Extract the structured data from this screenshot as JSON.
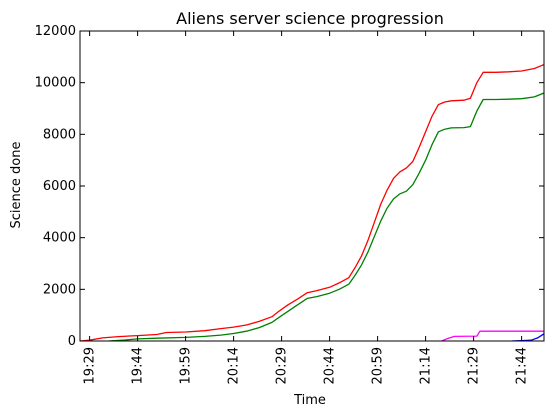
{
  "chart_data": {
    "type": "line",
    "title": "Aliens server science progression",
    "xlabel": "Time",
    "ylabel": "Science done",
    "xlim": [
      "19:26",
      "21:51"
    ],
    "ylim": [
      0,
      12000
    ],
    "yticks": [
      0,
      2000,
      4000,
      6000,
      8000,
      10000,
      12000
    ],
    "xticks": [
      "19:29",
      "19:44",
      "19:59",
      "20:14",
      "20:29",
      "20:44",
      "20:59",
      "21:14",
      "21:29",
      "21:44"
    ],
    "grid": false,
    "legend": "none",
    "series": [
      {
        "color": "#ff0000",
        "points": [
          [
            "19:26",
            0
          ],
          [
            "19:29",
            30
          ],
          [
            "19:33",
            120
          ],
          [
            "19:38",
            170
          ],
          [
            "19:44",
            210
          ],
          [
            "19:50",
            250
          ],
          [
            "19:53",
            330
          ],
          [
            "19:59",
            350
          ],
          [
            "20:05",
            400
          ],
          [
            "20:10",
            480
          ],
          [
            "20:14",
            540
          ],
          [
            "20:18",
            620
          ],
          [
            "20:22",
            760
          ],
          [
            "20:26",
            940
          ],
          [
            "20:28",
            1140
          ],
          [
            "20:31",
            1400
          ],
          [
            "20:34",
            1620
          ],
          [
            "20:37",
            1870
          ],
          [
            "20:40",
            1950
          ],
          [
            "20:44",
            2080
          ],
          [
            "20:47",
            2250
          ],
          [
            "20:50",
            2450
          ],
          [
            "20:52",
            2850
          ],
          [
            "20:54",
            3300
          ],
          [
            "20:56",
            3900
          ],
          [
            "20:58",
            4600
          ],
          [
            "21:00",
            5300
          ],
          [
            "21:02",
            5850
          ],
          [
            "21:04",
            6300
          ],
          [
            "21:06",
            6550
          ],
          [
            "21:08",
            6700
          ],
          [
            "21:10",
            6950
          ],
          [
            "21:12",
            7500
          ],
          [
            "21:14",
            8100
          ],
          [
            "21:16",
            8700
          ],
          [
            "21:18",
            9150
          ],
          [
            "21:20",
            9250
          ],
          [
            "21:22",
            9300
          ],
          [
            "21:26",
            9320
          ],
          [
            "21:28",
            9400
          ],
          [
            "21:30",
            10000
          ],
          [
            "21:32",
            10400
          ],
          [
            "21:36",
            10400
          ],
          [
            "21:40",
            10420
          ],
          [
            "21:44",
            10450
          ],
          [
            "21:48",
            10550
          ],
          [
            "21:51",
            10700
          ]
        ]
      },
      {
        "color": "#008000",
        "points": [
          [
            "19:35",
            0
          ],
          [
            "19:40",
            40
          ],
          [
            "19:44",
            80
          ],
          [
            "19:50",
            110
          ],
          [
            "19:59",
            140
          ],
          [
            "20:05",
            180
          ],
          [
            "20:10",
            230
          ],
          [
            "20:14",
            290
          ],
          [
            "20:18",
            380
          ],
          [
            "20:22",
            520
          ],
          [
            "20:26",
            720
          ],
          [
            "20:28",
            900
          ],
          [
            "20:31",
            1150
          ],
          [
            "20:34",
            1400
          ],
          [
            "20:37",
            1650
          ],
          [
            "20:40",
            1720
          ],
          [
            "20:44",
            1850
          ],
          [
            "20:47",
            2000
          ],
          [
            "20:50",
            2200
          ],
          [
            "20:52",
            2550
          ],
          [
            "20:54",
            2950
          ],
          [
            "20:56",
            3450
          ],
          [
            "20:58",
            4050
          ],
          [
            "21:00",
            4650
          ],
          [
            "21:02",
            5150
          ],
          [
            "21:04",
            5500
          ],
          [
            "21:06",
            5700
          ],
          [
            "21:08",
            5800
          ],
          [
            "21:10",
            6050
          ],
          [
            "21:12",
            6500
          ],
          [
            "21:14",
            7000
          ],
          [
            "21:16",
            7600
          ],
          [
            "21:18",
            8100
          ],
          [
            "21:20",
            8200
          ],
          [
            "21:22",
            8250
          ],
          [
            "21:26",
            8260
          ],
          [
            "21:28",
            8300
          ],
          [
            "21:30",
            8900
          ],
          [
            "21:32",
            9350
          ],
          [
            "21:36",
            9350
          ],
          [
            "21:40",
            9360
          ],
          [
            "21:44",
            9380
          ],
          [
            "21:48",
            9450
          ],
          [
            "21:51",
            9600
          ]
        ]
      },
      {
        "color": "#ff00ff",
        "points": [
          [
            "21:19",
            0
          ],
          [
            "21:21",
            100
          ],
          [
            "21:23",
            180
          ],
          [
            "21:30",
            190
          ],
          [
            "21:31",
            380
          ],
          [
            "21:40",
            380
          ],
          [
            "21:51",
            380
          ]
        ]
      },
      {
        "color": "#0000ff",
        "points": [
          [
            "21:41",
            0
          ],
          [
            "21:44",
            10
          ],
          [
            "21:47",
            30
          ],
          [
            "21:49",
            120
          ],
          [
            "21:51",
            280
          ]
        ]
      }
    ]
  }
}
